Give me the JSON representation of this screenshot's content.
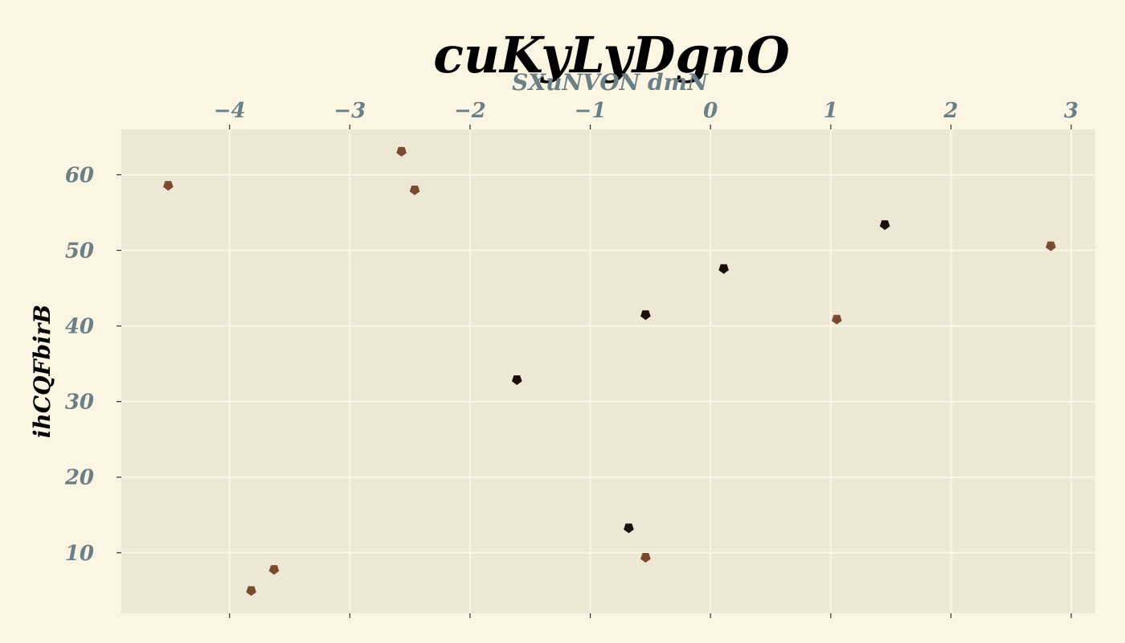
{
  "chart_data": {
    "type": "scatter",
    "title": "cuKyLyDgnO",
    "xlabel": "SXuNVON dmN",
    "ylabel": "ihCQFbirB",
    "x_axis_position": "top",
    "xlim": [
      -4.9,
      3.2
    ],
    "ylim": [
      2,
      66
    ],
    "xticks": [
      -4,
      -3,
      -2,
      -1,
      0,
      1,
      2,
      3
    ],
    "xtick_labels": [
      "−4",
      "−3",
      "−2",
      "−1",
      "0",
      "1",
      "2",
      "3"
    ],
    "yticks": [
      10,
      20,
      30,
      40,
      50,
      60
    ],
    "ytick_labels": [
      "10",
      "20",
      "30",
      "40",
      "50",
      "60"
    ],
    "grid": true,
    "legend": "none",
    "colors": {
      "background": "#fcf5e3",
      "plot_area": "#efe7d6",
      "grid": "#fbf5e6",
      "tick_text": "#6b7f86",
      "series_dark": "#1a0f0a",
      "series_brown": "#7a4a2e"
    },
    "marker": "pentagon",
    "series": [
      {
        "color": "#1a0f0a",
        "points": [
          {
            "x": -0.68,
            "y": 13.3
          },
          {
            "x": -1.61,
            "y": 32.9
          },
          {
            "x": -0.54,
            "y": 41.5
          },
          {
            "x": 0.11,
            "y": 47.6
          },
          {
            "x": 1.45,
            "y": 53.4
          }
        ]
      },
      {
        "color": "#7a4a2e",
        "points": [
          {
            "x": -4.51,
            "y": 58.6
          },
          {
            "x": -2.57,
            "y": 63.1
          },
          {
            "x": -2.46,
            "y": 58.0
          },
          {
            "x": -3.82,
            "y": 5.0
          },
          {
            "x": -3.63,
            "y": 7.8
          },
          {
            "x": -0.54,
            "y": 9.4
          },
          {
            "x": 1.05,
            "y": 40.9
          },
          {
            "x": 2.83,
            "y": 50.6
          }
        ]
      }
    ]
  }
}
